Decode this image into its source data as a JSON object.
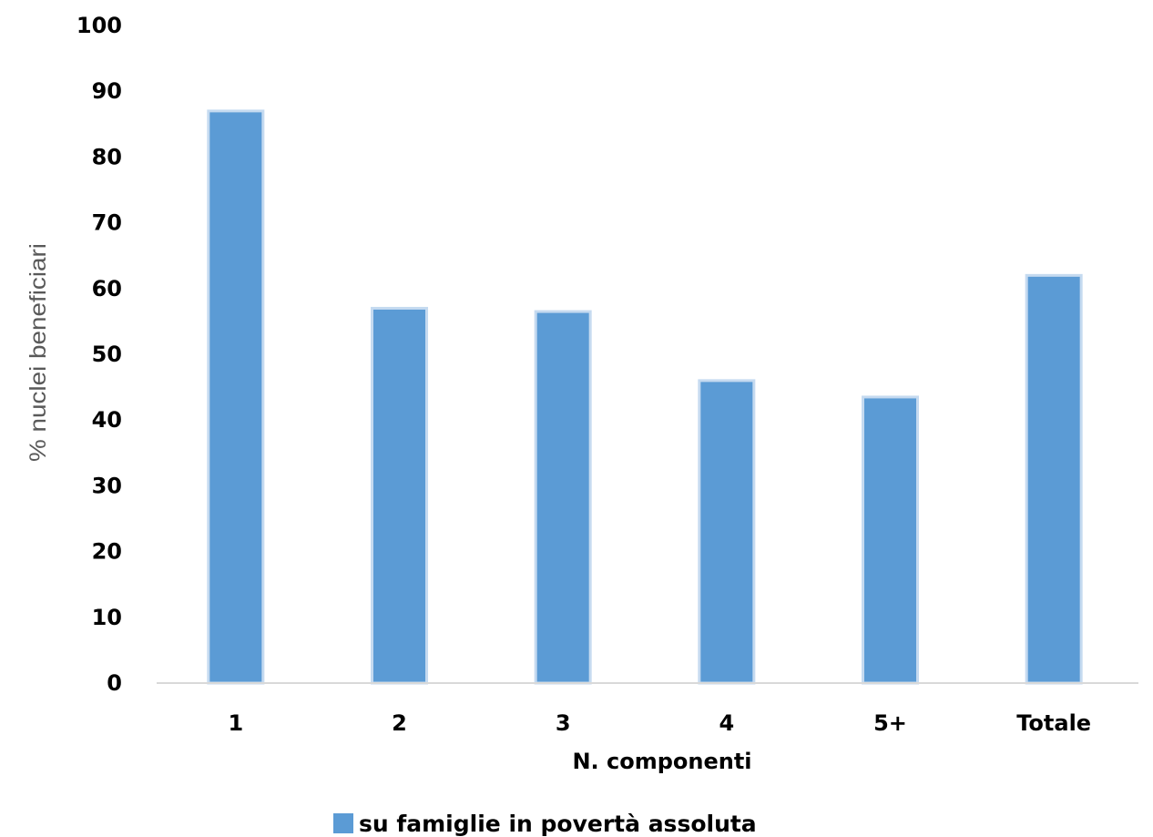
{
  "chart_data": {
    "type": "bar",
    "title": "",
    "xlabel": "N. componenti",
    "ylabel": "% nuclei beneficiari",
    "categories": [
      "1",
      "2",
      "3",
      "4",
      "5+",
      "Totale"
    ],
    "series": [
      {
        "name": "su famiglie in povertà assoluta",
        "values": [
          87,
          57,
          56.5,
          46,
          43.5,
          62
        ],
        "color": "#5B9BD5"
      }
    ],
    "ylim": [
      0,
      100
    ],
    "yticks": [
      "0",
      "10",
      "20",
      "30",
      "40",
      "50",
      "60",
      "70",
      "80",
      "90",
      "100"
    ],
    "grid": false,
    "legend_position": "bottom"
  }
}
